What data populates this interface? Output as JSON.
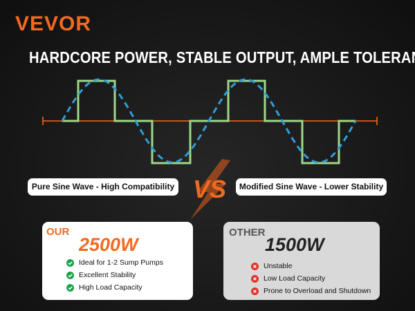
{
  "brand": "VEVOR",
  "headline": "HARDCORE POWER, STABLE OUTPUT, AMPLE TOLERANCE",
  "labels": {
    "pure": "Pure Sine Wave - High Compatibility",
    "vs": "VS",
    "modified": "Modified Sine Wave - Lower Stability"
  },
  "our": {
    "tag": "OUR",
    "power": "2500W",
    "features": [
      "Ideal for 1-2 Sump Pumps",
      "Excellent Stability",
      "High Load Capacity"
    ]
  },
  "other": {
    "tag": "OTHER",
    "power": "1500W",
    "features": [
      "Unstable",
      "Low Load Capacity",
      "Prone to Overload and Shutdown"
    ]
  },
  "colors": {
    "brand": "#f26a1f",
    "axis": "#f26a1f",
    "square_wave": "#9ed78a",
    "sine_wave": "#2f9ed9",
    "check": "#1aa34a",
    "cross": "#e0302a"
  }
}
